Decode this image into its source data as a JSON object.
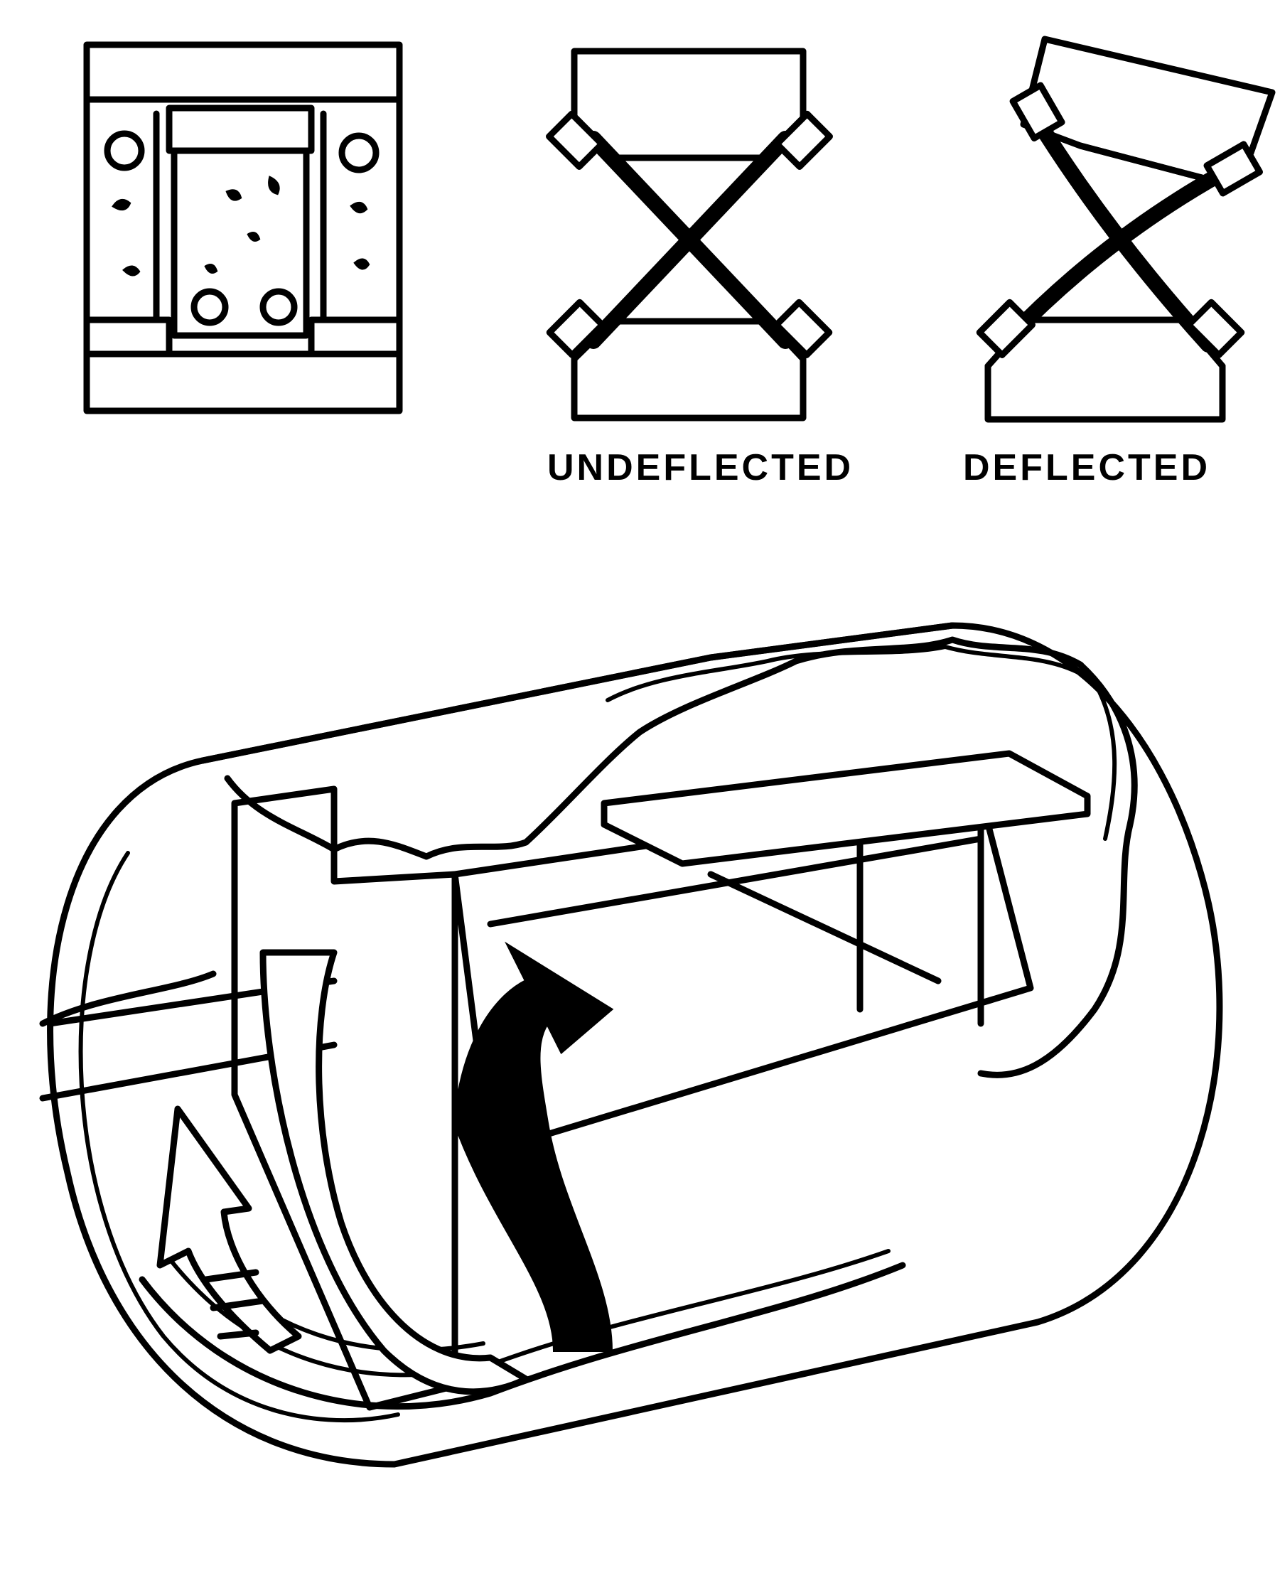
{
  "labels": {
    "undeflected": "UNDEFLECTED",
    "deflected": "DEFLECTED"
  },
  "colors": {
    "ink": "#000000",
    "paper": "#ffffff"
  }
}
